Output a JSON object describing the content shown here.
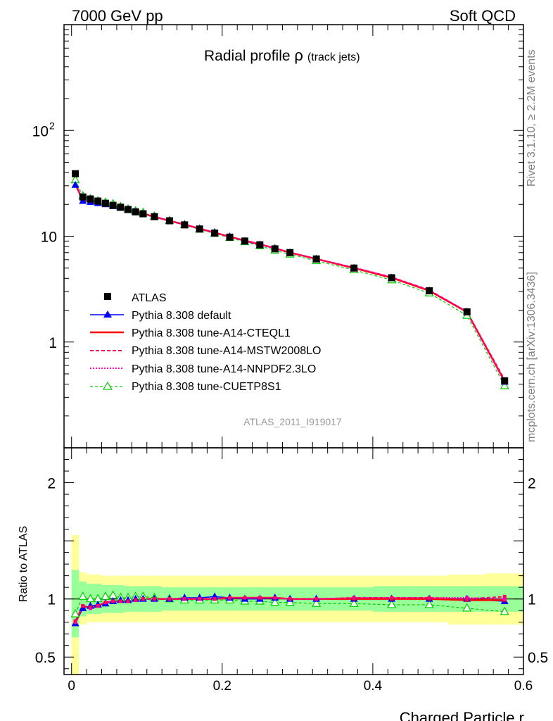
{
  "header": {
    "left": "7000 GeV pp",
    "right": "Soft QCD"
  },
  "title": {
    "main": "Radial profile ",
    "symbol": "ρ",
    "sub": "(track jets)"
  },
  "side_texts": {
    "rivet": "Rivet 3.1.10, ≥ 2.2M events",
    "mcplots": "mcplots.cern.ch [arXiv:1306.3436]"
  },
  "watermark": "ATLAS_2011_I919017",
  "colors": {
    "data": "#000000",
    "default": "#0000ff",
    "cteql1": "#ff0000",
    "mstw": "#ff0066",
    "nnpdf": "#ff00cc",
    "cuetp8s1": "#00cc00",
    "band_inner": "#99ff99",
    "band_outer": "#ffff99"
  },
  "chart_data": [
    {
      "type": "line",
      "title": "Radial profile ρ (track jets)",
      "xlabel": "Charged Particle r",
      "ylabel": "",
      "yscale": "log",
      "xlim": [
        -0.01,
        0.6
      ],
      "ylim": [
        0.1,
        1000
      ],
      "y_tick_labels": [
        "1",
        "10",
        "10^2"
      ],
      "legend": {
        "placement": "lower-left",
        "entries": [
          "ATLAS",
          "Pythia 8.308 default",
          "Pythia 8.308 tune-A14-CTEQL1",
          "Pythia 8.308 tune-A14-MSTW2008LO",
          "Pythia 8.308 tune-A14-NNPDF2.3LO",
          "Pythia 8.308 tune-CUETP8S1"
        ]
      },
      "x": [
        0.005,
        0.015,
        0.025,
        0.035,
        0.045,
        0.055,
        0.065,
        0.075,
        0.085,
        0.095,
        0.11,
        0.13,
        0.15,
        0.17,
        0.19,
        0.21,
        0.23,
        0.25,
        0.27,
        0.29,
        0.325,
        0.375,
        0.425,
        0.475,
        0.525,
        0.575
      ],
      "series": [
        {
          "name": "ATLAS",
          "values": [
            39.0,
            23.5,
            22.5,
            21.5,
            20.5,
            19.6,
            18.8,
            17.9,
            17.0,
            16.3,
            15.3,
            14.0,
            12.8,
            11.7,
            10.7,
            9.8,
            9.0,
            8.3,
            7.6,
            7.0,
            6.1,
            5.0,
            4.05,
            3.05,
            1.93,
            0.43
          ]
        },
        {
          "name": "Pythia 8.308 default",
          "values": [
            30.5,
            21.5,
            21.0,
            20.5,
            20.0,
            19.2,
            18.5,
            17.6,
            16.9,
            16.2,
            15.2,
            13.9,
            12.9,
            11.8,
            10.9,
            9.9,
            9.0,
            8.3,
            7.7,
            7.0,
            6.1,
            5.0,
            4.05,
            3.05,
            1.93,
            0.42
          ]
        },
        {
          "name": "Pythia 8.308 tune-A14-CTEQL1",
          "values": [
            31.0,
            22.0,
            20.7,
            20.1,
            19.8,
            19.1,
            18.4,
            17.5,
            16.9,
            16.3,
            15.3,
            14.0,
            12.9,
            11.8,
            10.8,
            9.9,
            9.1,
            8.4,
            7.7,
            7.0,
            6.1,
            5.0,
            4.05,
            3.05,
            1.92,
            0.425
          ]
        },
        {
          "name": "Pythia 8.308 tune-A14-MSTW2008LO",
          "values": [
            31.5,
            22.1,
            20.9,
            20.2,
            19.9,
            19.2,
            18.5,
            17.6,
            16.9,
            16.3,
            15.3,
            14.0,
            12.9,
            11.8,
            10.8,
            9.9,
            9.1,
            8.4,
            7.7,
            7.0,
            6.1,
            5.05,
            4.1,
            3.1,
            1.93,
            0.44
          ]
        },
        {
          "name": "Pythia 8.308 tune-A14-NNPDF2.3LO",
          "values": [
            31.2,
            22.0,
            20.8,
            20.2,
            19.8,
            19.1,
            18.4,
            17.6,
            16.9,
            16.3,
            15.3,
            14.0,
            12.9,
            11.8,
            10.8,
            9.9,
            9.1,
            8.4,
            7.7,
            7.0,
            6.1,
            5.05,
            4.1,
            3.08,
            1.94,
            0.43
          ]
        },
        {
          "name": "Pythia 8.308 tune-CUETP8S1",
          "values": [
            34.0,
            24.0,
            22.5,
            21.5,
            20.9,
            20.2,
            19.0,
            18.0,
            17.3,
            16.7,
            15.4,
            14.0,
            12.8,
            11.6,
            10.6,
            9.7,
            8.85,
            8.1,
            7.35,
            6.75,
            5.85,
            4.8,
            3.85,
            2.9,
            1.78,
            0.385
          ]
        }
      ]
    },
    {
      "type": "line",
      "xlabel": "Charged Particle r",
      "ylabel": "Ratio to ATLAS",
      "xlim": [
        -0.01,
        0.6
      ],
      "ylim": [
        0.35,
        2.3
      ],
      "yticks": [
        0.5,
        1,
        2
      ],
      "y_tick_labels": [
        "0.5",
        "1",
        "2"
      ],
      "x_tick_labels": [
        "0",
        "0.2",
        "0.4",
        "0.6"
      ],
      "x": [
        0.005,
        0.015,
        0.025,
        0.035,
        0.045,
        0.055,
        0.065,
        0.075,
        0.085,
        0.095,
        0.11,
        0.13,
        0.15,
        0.17,
        0.19,
        0.21,
        0.23,
        0.25,
        0.27,
        0.29,
        0.325,
        0.375,
        0.425,
        0.475,
        0.525,
        0.575
      ],
      "bin_edges": [
        0.0,
        0.01,
        0.02,
        0.03,
        0.04,
        0.05,
        0.06,
        0.07,
        0.08,
        0.09,
        0.1,
        0.12,
        0.14,
        0.16,
        0.18,
        0.2,
        0.22,
        0.24,
        0.26,
        0.28,
        0.3,
        0.35,
        0.4,
        0.45,
        0.5,
        0.55,
        0.6
      ],
      "band_inner": [
        [
          0.67,
          1.25
        ],
        [
          0.85,
          1.15
        ],
        [
          0.87,
          1.13
        ],
        [
          0.87,
          1.13
        ],
        [
          0.88,
          1.12
        ],
        [
          0.88,
          1.12
        ],
        [
          0.88,
          1.12
        ],
        [
          0.89,
          1.11
        ],
        [
          0.89,
          1.11
        ],
        [
          0.89,
          1.11
        ],
        [
          0.89,
          1.11
        ],
        [
          0.9,
          1.1
        ],
        [
          0.9,
          1.1
        ],
        [
          0.9,
          1.1
        ],
        [
          0.9,
          1.1
        ],
        [
          0.9,
          1.1
        ],
        [
          0.9,
          1.1
        ],
        [
          0.9,
          1.1
        ],
        [
          0.9,
          1.1
        ],
        [
          0.9,
          1.1
        ],
        [
          0.9,
          1.1
        ],
        [
          0.9,
          1.1
        ],
        [
          0.89,
          1.11
        ],
        [
          0.89,
          1.11
        ],
        [
          0.89,
          1.11
        ],
        [
          0.89,
          1.11
        ]
      ],
      "band_outer": [
        [
          0.33,
          1.55
        ],
        [
          0.78,
          1.23
        ],
        [
          0.8,
          1.21
        ],
        [
          0.8,
          1.21
        ],
        [
          0.8,
          1.2
        ],
        [
          0.8,
          1.2
        ],
        [
          0.8,
          1.2
        ],
        [
          0.8,
          1.2
        ],
        [
          0.8,
          1.2
        ],
        [
          0.8,
          1.2
        ],
        [
          0.8,
          1.2
        ],
        [
          0.8,
          1.2
        ],
        [
          0.8,
          1.2
        ],
        [
          0.8,
          1.2
        ],
        [
          0.8,
          1.2
        ],
        [
          0.8,
          1.2
        ],
        [
          0.8,
          1.2
        ],
        [
          0.8,
          1.2
        ],
        [
          0.8,
          1.2
        ],
        [
          0.8,
          1.2
        ],
        [
          0.8,
          1.2
        ],
        [
          0.8,
          1.2
        ],
        [
          0.8,
          1.2
        ],
        [
          0.8,
          1.2
        ],
        [
          0.78,
          1.21
        ],
        [
          0.78,
          1.22
        ]
      ],
      "series": [
        {
          "name": "Pythia 8.308 default",
          "values": [
            0.79,
            0.92,
            0.94,
            0.95,
            0.96,
            0.98,
            0.99,
            0.99,
            1.0,
            1.0,
            1.0,
            1.0,
            1.01,
            1.01,
            1.02,
            1.01,
            1.0,
            1.0,
            1.01,
            1.0,
            1.0,
            1.0,
            1.0,
            1.0,
            1.0,
            0.98
          ]
        },
        {
          "name": "Pythia 8.308 tune-A14-CTEQL1",
          "values": [
            0.8,
            0.94,
            0.92,
            0.94,
            0.97,
            0.98,
            0.98,
            0.98,
            0.99,
            1.0,
            1.0,
            1.0,
            1.0,
            1.0,
            1.0,
            1.01,
            1.01,
            1.01,
            1.01,
            1.0,
            1.0,
            1.0,
            1.0,
            1.0,
            0.99,
            0.99
          ]
        },
        {
          "name": "Pythia 8.308 tune-A14-MSTW2008LO",
          "values": [
            0.81,
            0.94,
            0.93,
            0.94,
            0.97,
            0.98,
            0.98,
            0.98,
            0.99,
            1.0,
            1.0,
            1.0,
            1.0,
            1.0,
            1.0,
            1.01,
            1.01,
            1.01,
            1.01,
            1.0,
            1.0,
            1.01,
            1.01,
            1.01,
            1.0,
            1.02
          ]
        },
        {
          "name": "Pythia 8.308 tune-A14-NNPDF2.3LO",
          "values": [
            0.8,
            0.94,
            0.92,
            0.94,
            0.97,
            0.98,
            0.98,
            0.98,
            0.99,
            1.0,
            1.0,
            1.0,
            1.0,
            1.0,
            1.0,
            1.01,
            1.01,
            1.01,
            1.01,
            1.0,
            1.0,
            1.01,
            1.01,
            1.01,
            1.01,
            1.0
          ]
        },
        {
          "name": "Pythia 8.308 tune-CUETP8S1",
          "values": [
            0.87,
            1.02,
            1.0,
            1.0,
            1.02,
            1.03,
            1.01,
            1.01,
            1.02,
            1.02,
            1.01,
            1.0,
            0.99,
            0.99,
            0.99,
            0.99,
            0.98,
            0.98,
            0.97,
            0.97,
            0.96,
            0.96,
            0.95,
            0.95,
            0.92,
            0.89
          ]
        }
      ]
    }
  ]
}
